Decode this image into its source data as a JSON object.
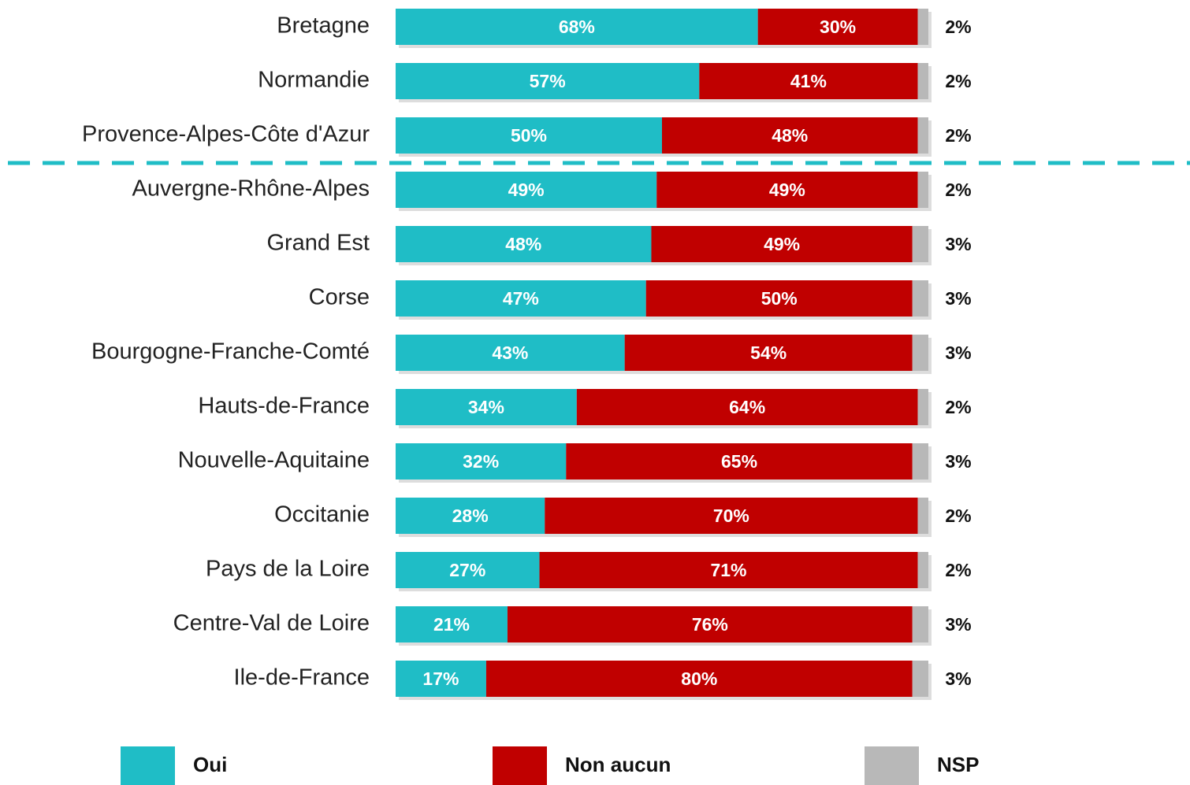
{
  "chart_data": {
    "type": "stacked-bar-horizontal",
    "categories": [
      "Bretagne",
      "Normandie",
      "Provence-Alpes-Côte d'Azur",
      "Auvergne-Rhône-Alpes",
      "Grand Est",
      "Corse",
      "Bourgogne-Franche-Comté",
      "Hauts-de-France",
      "Nouvelle-Aquitaine",
      "Occitanie",
      "Pays de la Loire",
      "Centre-Val de Loire",
      "Ile-de-France"
    ],
    "series": [
      {
        "name": "Oui",
        "color": "#1fbdc6",
        "values": [
          68,
          57,
          50,
          49,
          48,
          47,
          43,
          34,
          32,
          28,
          27,
          21,
          17
        ],
        "value_labels": [
          "68%",
          "57%",
          "50%",
          "49%",
          "48%",
          "47%",
          "43%",
          "34%",
          "32%",
          "28%",
          "27%",
          "21%",
          "17%"
        ]
      },
      {
        "name": "Non aucun",
        "color": "#c00000",
        "values": [
          30,
          41,
          48,
          49,
          49,
          50,
          54,
          64,
          65,
          70,
          71,
          76,
          80
        ],
        "value_labels": [
          "30%",
          "41%",
          "48%",
          "49%",
          "49%",
          "50%",
          "54%",
          "64%",
          "65%",
          "70%",
          "71%",
          "76%",
          "80%"
        ]
      },
      {
        "name": "NSP",
        "color": "#b8b8b8",
        "values": [
          2,
          2,
          2,
          2,
          3,
          3,
          3,
          2,
          3,
          2,
          2,
          3,
          3
        ],
        "value_labels": [
          "2%",
          "2%",
          "2%",
          "2%",
          "3%",
          "3%",
          "3%",
          "2%",
          "3%",
          "2%",
          "2%",
          "3%",
          "3%"
        ]
      }
    ]
  }
}
